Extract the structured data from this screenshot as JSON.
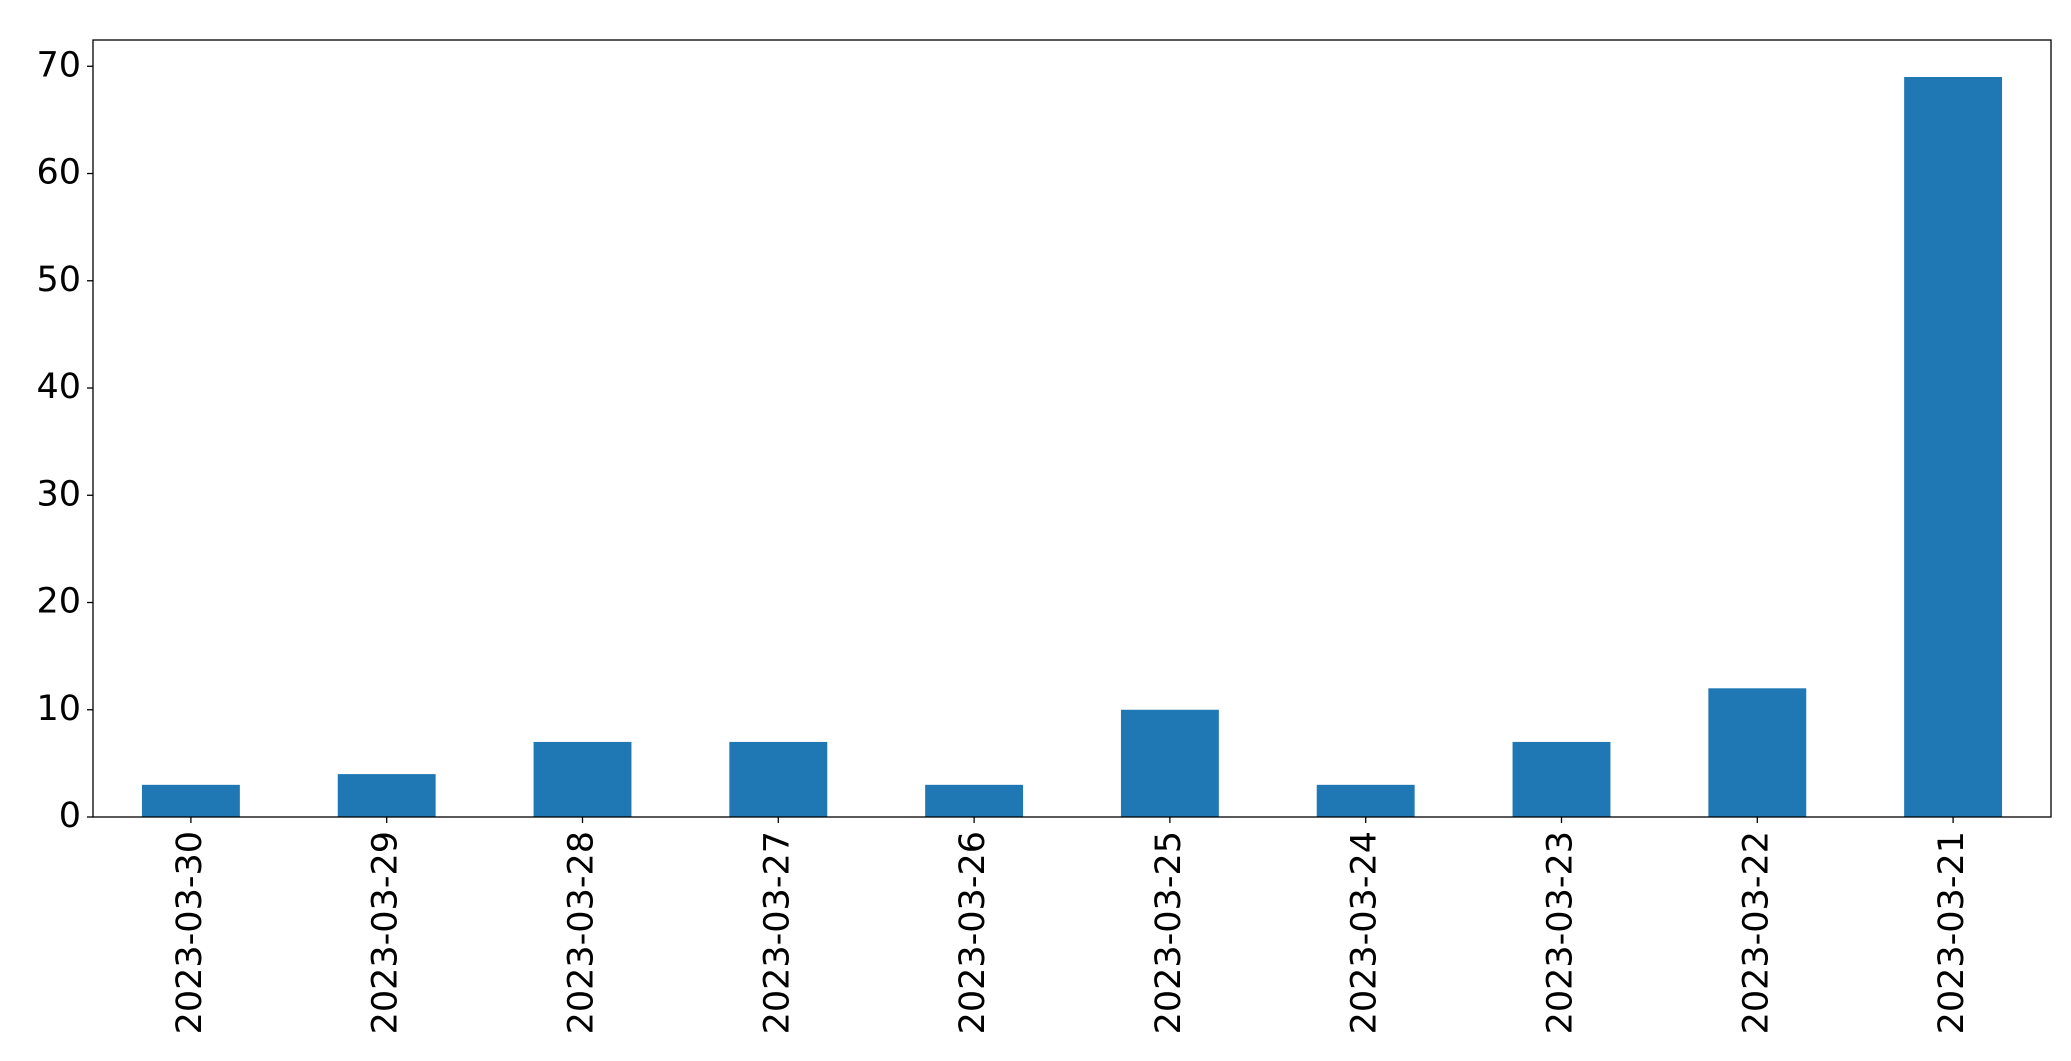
{
  "chart_data": {
    "type": "bar",
    "categories": [
      "2023-03-30",
      "2023-03-29",
      "2023-03-28",
      "2023-03-27",
      "2023-03-26",
      "2023-03-25",
      "2023-03-24",
      "2023-03-23",
      "2023-03-22",
      "2023-03-21"
    ],
    "values": [
      3,
      4,
      7,
      7,
      3,
      10,
      3,
      7,
      12,
      69
    ],
    "color": "#1f77b4",
    "ylim": [
      0,
      72.45
    ],
    "yticks": [
      0,
      10,
      20,
      30,
      40,
      50,
      60,
      70
    ],
    "grid": false
  }
}
